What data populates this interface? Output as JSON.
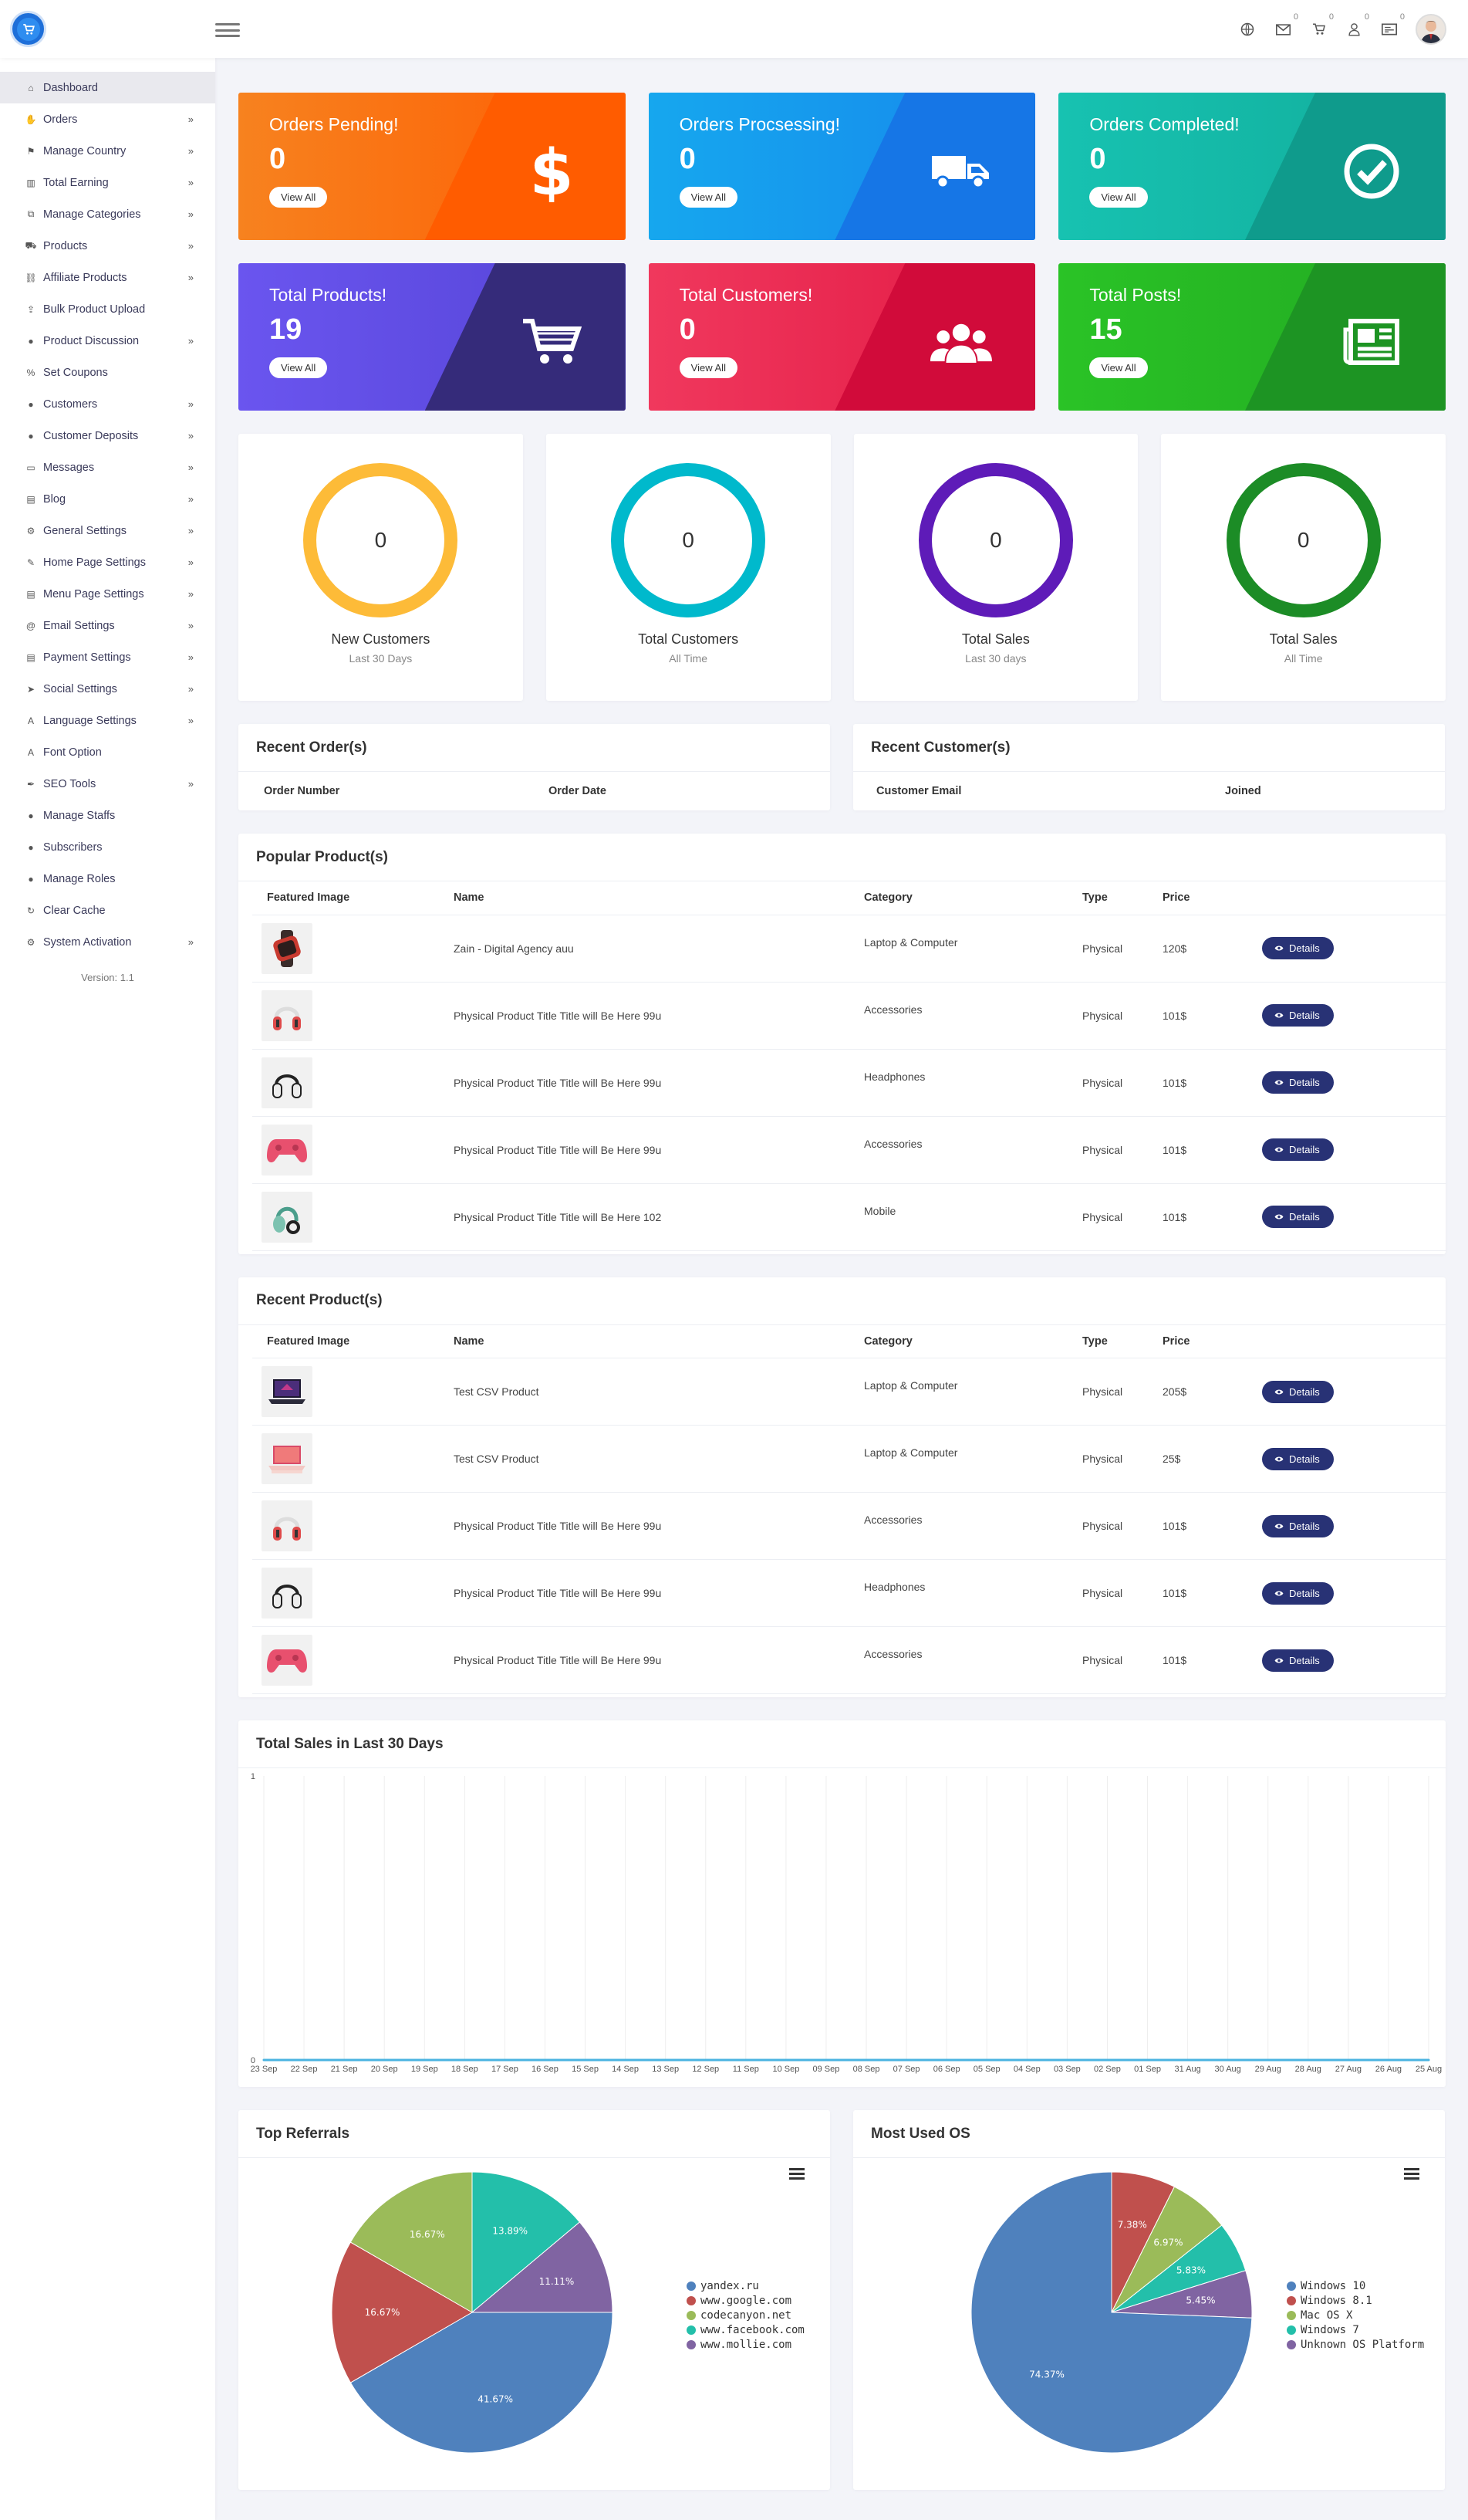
{
  "topbar": {
    "icons": [
      "globe-icon",
      "envelope-icon",
      "cart-icon",
      "user-icon",
      "ticket-icon"
    ],
    "badges": {
      "envelope": "0",
      "cart": "0",
      "user": "0",
      "ticket": "0"
    }
  },
  "sidebar": {
    "items": [
      {
        "label": "Dashboard",
        "icon": "home-icon",
        "sub": false,
        "active": true
      },
      {
        "label": "Orders",
        "icon": "hand-icon",
        "sub": true
      },
      {
        "label": "Manage Country",
        "icon": "flag-icon",
        "sub": true
      },
      {
        "label": "Total Earning",
        "icon": "chart-icon",
        "sub": true
      },
      {
        "label": "Manage Categories",
        "icon": "sitemap-icon",
        "sub": true
      },
      {
        "label": "Products",
        "icon": "cart-icon",
        "sub": true
      },
      {
        "label": "Affiliate Products",
        "icon": "link-icon",
        "sub": true
      },
      {
        "label": "Bulk Product Upload",
        "icon": "upload-icon",
        "sub": false
      },
      {
        "label": "Product Discussion",
        "icon": "comment-icon",
        "sub": true
      },
      {
        "label": "Set Coupons",
        "icon": "percent-icon",
        "sub": false
      },
      {
        "label": "Customers",
        "icon": "user-icon",
        "sub": true
      },
      {
        "label": "Customer Deposits",
        "icon": "user-icon",
        "sub": true
      },
      {
        "label": "Messages",
        "icon": "inbox-icon",
        "sub": true
      },
      {
        "label": "Blog",
        "icon": "doc-icon",
        "sub": true
      },
      {
        "label": "General Settings",
        "icon": "cogs-icon",
        "sub": true
      },
      {
        "label": "Home Page Settings",
        "icon": "edit-icon",
        "sub": true
      },
      {
        "label": "Menu Page Settings",
        "icon": "file-icon",
        "sub": true
      },
      {
        "label": "Email Settings",
        "icon": "at-icon",
        "sub": true
      },
      {
        "label": "Payment Settings",
        "icon": "file-icon",
        "sub": true
      },
      {
        "label": "Social Settings",
        "icon": "paper-plane-icon",
        "sub": true
      },
      {
        "label": "Language Settings",
        "icon": "language-icon",
        "sub": true
      },
      {
        "label": "Font Option",
        "icon": "font-icon",
        "sub": false
      },
      {
        "label": "SEO Tools",
        "icon": "wrench-icon",
        "sub": true
      },
      {
        "label": "Manage Staffs",
        "icon": "user-secret-icon",
        "sub": false
      },
      {
        "label": "Subscribers",
        "icon": "users-icon",
        "sub": false
      },
      {
        "label": "Manage Roles",
        "icon": "user-tie-icon",
        "sub": false
      },
      {
        "label": "Clear Cache",
        "icon": "sync-icon",
        "sub": false
      },
      {
        "label": "System Activation",
        "icon": "cog-icon",
        "sub": true
      }
    ],
    "version": "Version: 1.1"
  },
  "stats": [
    {
      "title": "Orders Pending!",
      "value": "0",
      "button": "View All",
      "icon": "dollar-icon",
      "c1": "#f7821f",
      "c2": "#fe5d02",
      "diag": "#ff5c00"
    },
    {
      "title": "Orders Procsessing!",
      "value": "0",
      "button": "View All",
      "icon": "truck-icon",
      "c1": "#16a7ee",
      "c2": "#1688ec",
      "diag": "#1676e6"
    },
    {
      "title": "Orders Completed!",
      "value": "0",
      "button": "View All",
      "icon": "check-circle-icon",
      "c1": "#17c2b1",
      "c2": "#12ad9b",
      "diag": "#0f9b8c"
    },
    {
      "title": "Total Products!",
      "value": "19",
      "button": "View All",
      "icon": "cart-icon",
      "c1": "#6a55ef",
      "c2": "#5544d6",
      "diag": "#352b7a"
    },
    {
      "title": "Total Customers!",
      "value": "0",
      "button": "View All",
      "icon": "users-icon",
      "c1": "#f0385d",
      "c2": "#e21a45",
      "diag": "#d10b3a"
    },
    {
      "title": "Total Posts!",
      "value": "15",
      "button": "View All",
      "icon": "newspaper-icon",
      "c1": "#2ac326",
      "c2": "#22aa22",
      "diag": "#1d9423"
    }
  ],
  "rings": [
    {
      "value": "0",
      "label": "New Customers",
      "sub": "Last 30 Days",
      "color": "#fdbb38"
    },
    {
      "value": "0",
      "label": "Total Customers",
      "sub": "All Time",
      "color": "#00b9cc"
    },
    {
      "value": "0",
      "label": "Total Sales",
      "sub": "Last 30 days",
      "color": "#5e1bb8"
    },
    {
      "value": "0",
      "label": "Total Sales",
      "sub": "All Time",
      "color": "#1c8c26"
    }
  ],
  "recent_orders": {
    "title": "Recent Order(s)",
    "cols": [
      "Order Number",
      "Order Date"
    ]
  },
  "recent_customers": {
    "title": "Recent Customer(s)",
    "cols": [
      "Customer Email",
      "Joined"
    ]
  },
  "popular": {
    "title": "Popular Product(s)",
    "cols": [
      "Featured Image",
      "Name",
      "Category",
      "Type",
      "Price"
    ],
    "rows": [
      {
        "img": "smartwatch",
        "name": "Zain - Digital Agency auu",
        "category": "Laptop & Computer",
        "type": "Physical",
        "price": "120$",
        "action": "Details"
      },
      {
        "img": "headphones-red",
        "name": "Physical Product Title Title will Be Here 99u",
        "category": "Accessories",
        "type": "Physical",
        "price": "101$",
        "action": "Details"
      },
      {
        "img": "headphones-black",
        "name": "Physical Product Title Title will Be Here 99u",
        "category": "Headphones",
        "type": "Physical",
        "price": "101$",
        "action": "Details"
      },
      {
        "img": "gamepad-pink",
        "name": "Physical Product Title Title will Be Here 99u",
        "category": "Accessories",
        "type": "Physical",
        "price": "101$",
        "action": "Details"
      },
      {
        "img": "headphones-green",
        "name": "Physical Product Title Title will Be Here 102",
        "category": "Mobile",
        "type": "Physical",
        "price": "101$",
        "action": "Details"
      }
    ]
  },
  "recent_products": {
    "title": "Recent Product(s)",
    "cols": [
      "Featured Image",
      "Name",
      "Category",
      "Type",
      "Price"
    ],
    "rows": [
      {
        "img": "laptop-dark",
        "name": "Test CSV Product",
        "category": "Laptop & Computer",
        "type": "Physical",
        "price": "205$",
        "action": "Details"
      },
      {
        "img": "laptop-pink",
        "name": "Test CSV Product",
        "category": "Laptop & Computer",
        "type": "Physical",
        "price": "25$",
        "action": "Details"
      },
      {
        "img": "headphones-red",
        "name": "Physical Product Title Title will Be Here 99u",
        "category": "Accessories",
        "type": "Physical",
        "price": "101$",
        "action": "Details"
      },
      {
        "img": "headphones-black",
        "name": "Physical Product Title Title will Be Here 99u",
        "category": "Headphones",
        "type": "Physical",
        "price": "101$",
        "action": "Details"
      },
      {
        "img": "gamepad-pink",
        "name": "Physical Product Title Title will Be Here 99u",
        "category": "Accessories",
        "type": "Physical",
        "price": "101$",
        "action": "Details"
      }
    ]
  },
  "sales_chart": {
    "title": "Total Sales in Last 30 Days"
  },
  "referrals": {
    "title": "Top Referrals"
  },
  "os": {
    "title": "Most Used OS"
  },
  "chart_data": [
    {
      "type": "line",
      "x": [
        "23 Sep",
        "22 Sep",
        "21 Sep",
        "20 Sep",
        "19 Sep",
        "18 Sep",
        "17 Sep",
        "16 Sep",
        "15 Sep",
        "14 Sep",
        "13 Sep",
        "12 Sep",
        "11 Sep",
        "10 Sep",
        "09 Sep",
        "08 Sep",
        "07 Sep",
        "06 Sep",
        "05 Sep",
        "04 Sep",
        "03 Sep",
        "02 Sep",
        "01 Sep",
        "31 Aug",
        "30 Aug",
        "29 Aug",
        "28 Aug",
        "27 Aug",
        "26 Aug",
        "25 Aug"
      ],
      "series": [
        {
          "values": [
            0,
            0,
            0,
            0,
            0,
            0,
            0,
            0,
            0,
            0,
            0,
            0,
            0,
            0,
            0,
            0,
            0,
            0,
            0,
            0,
            0,
            0,
            0,
            0,
            0,
            0,
            0,
            0,
            0,
            0
          ]
        }
      ],
      "ylim": [
        0,
        1
      ],
      "yticks": [
        "0",
        "1"
      ],
      "grid": true,
      "line_color": "#4ab3e0"
    },
    {
      "type": "pie",
      "labels": [
        "yandex.ru",
        "www.google.com",
        "codecanyon.net",
        "www.facebook.com",
        "www.mollie.com"
      ],
      "values": [
        41.67,
        16.67,
        16.67,
        13.89,
        11.11
      ],
      "value_labels": [
        "41.67%",
        "16.67%",
        "16.67%",
        "13.89%",
        "11.11%"
      ],
      "colors": [
        "#4f81bd",
        "#c0504d",
        "#9bbb59",
        "#23bfaa",
        "#8064a2"
      ],
      "legend": "right"
    },
    {
      "type": "pie",
      "labels": [
        "Windows 10",
        "Windows 8.1",
        "Mac OS X",
        "Windows 7",
        "Unknown OS Platform"
      ],
      "values": [
        74.37,
        7.38,
        6.97,
        5.83,
        5.45
      ],
      "value_labels": [
        "74.37%",
        "7.38%",
        "6.97%",
        "5.83%",
        "5.45%"
      ],
      "colors": [
        "#4f81bd",
        "#c0504d",
        "#9bbb59",
        "#23bfaa",
        "#8064a2"
      ],
      "legend": "right"
    }
  ]
}
